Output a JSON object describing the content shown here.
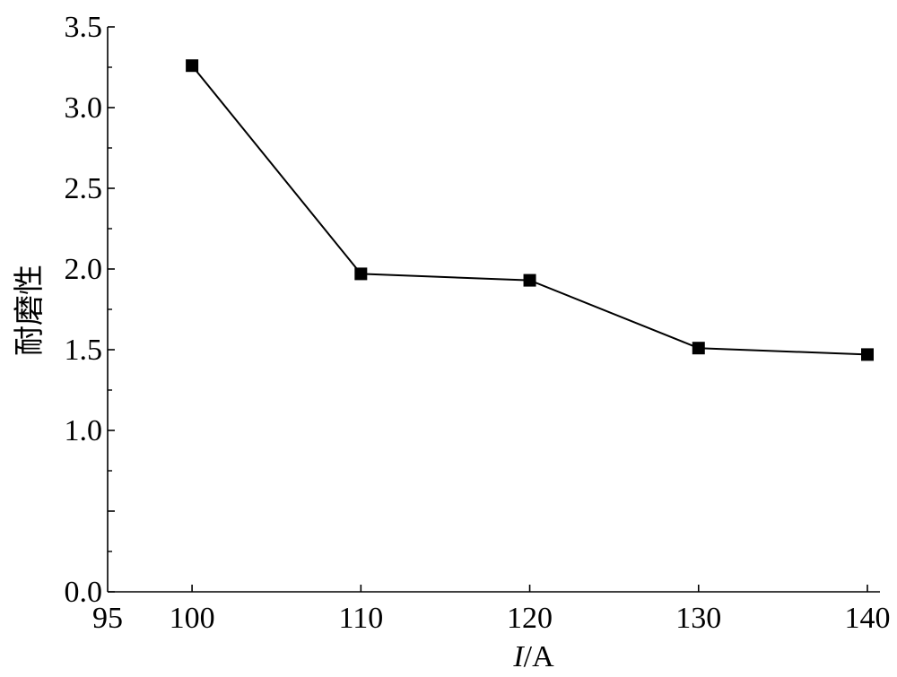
{
  "chart_data": {
    "type": "line",
    "title": "",
    "xlabel_italic": "I",
    "xlabel_rest": "/A",
    "ylabel": "耐磨性",
    "x": [
      100,
      110,
      120,
      130,
      140
    ],
    "y": [
      3.26,
      1.97,
      1.93,
      1.51,
      1.47
    ],
    "xlim": [
      95,
      140
    ],
    "ylim": [
      0,
      3.5
    ],
    "xticks": [
      95,
      100,
      110,
      120,
      130,
      140
    ],
    "yticks": [
      0.0,
      0.5,
      1.0,
      1.5,
      2.0,
      2.5,
      3.0,
      3.5
    ],
    "yticks_labeled": [
      0.0,
      1.0,
      1.5,
      2.0,
      2.5,
      3.0,
      3.5
    ],
    "ytick_decimals": 1,
    "grid": false,
    "marker": "square",
    "line_color": "#000000",
    "marker_color": "#000000"
  }
}
